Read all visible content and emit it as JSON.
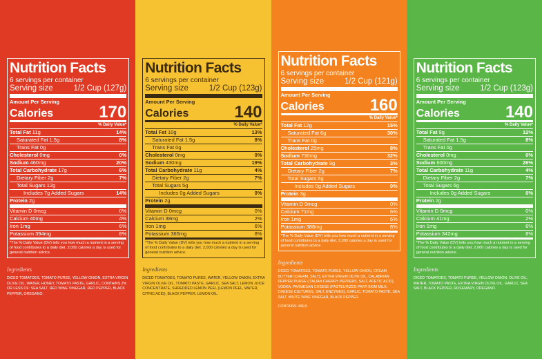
{
  "panels": [
    {
      "title": "Nutrition Facts",
      "servings": "6 servings per container",
      "serving_size_label": "Serving size",
      "serving_size": "1/2 Cup (127g)",
      "amount_per_serving": "Amount Per Serving",
      "calories_label": "Calories",
      "calories": "170",
      "dv_header": "% Daily Value*",
      "nutrients": [
        {
          "name": "Total Fat",
          "amount": "11g",
          "dv": "14%",
          "sub": [
            {
              "name": "Saturated Fat",
              "amount": "1.5g",
              "dv": "8%"
            },
            {
              "name": "Trans Fat",
              "amount": "0g"
            }
          ]
        },
        {
          "name": "Cholesterol",
          "amount": "0mg",
          "dv": "0%"
        },
        {
          "name": "Sodium",
          "amount": "460mg",
          "dv": "20%"
        },
        {
          "name": "Total Carbohydrate",
          "amount": "17g",
          "dv": "6%",
          "sub": [
            {
              "name": "Dietary Fiber",
              "amount": "2g",
              "dv": "7%"
            },
            {
              "name": "Total Sugars",
              "amount": "12g",
              "sub": [
                {
                  "name": "Includes 7g Added Sugars",
                  "dv": "14%"
                }
              ]
            }
          ]
        },
        {
          "name": "Protein",
          "amount": "2g"
        }
      ],
      "vitamins": [
        {
          "name": "Vitamin D",
          "amount": "0mcg",
          "dv": "0%"
        },
        {
          "name": "Calcium",
          "amount": "40mg",
          "dv": "4%"
        },
        {
          "name": "Iron",
          "amount": "1mg",
          "dv": "6%"
        },
        {
          "name": "Potassium",
          "amount": "394mg",
          "dv": "8%"
        }
      ],
      "footnote": "*The % Daily Value (DV) tells you how much a nutrient in a serving of food contributes to a daily diet. 2,000 calories a day is used for general nutrition advice.",
      "ingredients_title": "Ingredients",
      "ingredients": "DICED TOMATOES, TOMATO PUREE, YELLOW ONION, EXTRA VIRGIN OLIVE OIL, WATER, HONEY, TOMATO PASTE, GARLIC, CONTAINS 2% OR LESS OF: SEA SALT, RED WINE VINEGAR, RED PEPPER, BLACK PEPPER, OREGANO."
    },
    {
      "title": "Nutrition Facts",
      "servings": "6 servings per container",
      "serving_size_label": "Serving size",
      "serving_size": "1/2 Cup (123g)",
      "amount_per_serving": "Amount Per Serving",
      "calories_label": "Calories",
      "calories": "140",
      "dv_header": "% Daily Value*",
      "nutrients": [
        {
          "name": "Total Fat",
          "amount": "10g",
          "dv": "13%",
          "sub": [
            {
              "name": "Saturated Fat",
              "amount": "1.5g",
              "dv": "8%"
            },
            {
              "name": "Trans Fat",
              "amount": "0g"
            }
          ]
        },
        {
          "name": "Cholesterol",
          "amount": "0mg",
          "dv": "0%"
        },
        {
          "name": "Sodium",
          "amount": "430mg",
          "dv": "19%"
        },
        {
          "name": "Total Carbohydrate",
          "amount": "11g",
          "dv": "4%",
          "sub": [
            {
              "name": "Dietary Fiber",
              "amount": "2g",
              "dv": "7%"
            },
            {
              "name": "Total Sugars",
              "amount": "5g",
              "sub": [
                {
                  "name": "Includes 0g Added Sugars",
                  "dv": "0%"
                }
              ]
            }
          ]
        },
        {
          "name": "Protein",
          "amount": "2g"
        }
      ],
      "vitamins": [
        {
          "name": "Vitamin D",
          "amount": "0mcg",
          "dv": "0%"
        },
        {
          "name": "Calcium",
          "amount": "38mg",
          "dv": "2%"
        },
        {
          "name": "Iron",
          "amount": "1mg",
          "dv": "6%"
        },
        {
          "name": "Potassium",
          "amount": "365mg",
          "dv": "8%"
        }
      ],
      "footnote": "*The % Daily Value (DV) tells you how much a nutrient in a serving of food contributes to a daily diet. 2,000 calories a day is used for general nutrition advice.",
      "ingredients_title": "Ingredients",
      "ingredients": "DICED TOMATOES, TOMATO PUREE, WATER, YELLOW ONION, EXTRA VIRGIN OLIVE OIL, TOMATO PASTE, GARLIC, SEA SALT, LEMON JUICE CONCENTRATE, SHREDDED LEMON PEEL (LEMON PEEL, WATER, CITRIC ACID), BLACK PEPPER, LEMON OIL."
    },
    {
      "title": "Nutrition Facts",
      "servings": "6 servings per container",
      "serving_size_label": "Serving size",
      "serving_size": "1/2 Cup (121g)",
      "amount_per_serving": "Amount Per Serving",
      "calories_label": "Calories",
      "calories": "160",
      "dv_header": "% Daily Value*",
      "nutrients": [
        {
          "name": "Total Fat",
          "amount": "12g",
          "dv": "15%",
          "sub": [
            {
              "name": "Saturated Fat",
              "amount": "6g",
              "dv": "30%"
            },
            {
              "name": "Trans Fat",
              "amount": "0g"
            }
          ]
        },
        {
          "name": "Cholesterol",
          "amount": "25mg",
          "dv": "8%"
        },
        {
          "name": "Sodium",
          "amount": "730mg",
          "dv": "32%"
        },
        {
          "name": "Total Carbohydrate",
          "amount": "9g",
          "dv": "3%",
          "sub": [
            {
              "name": "Dietary Fiber",
              "amount": "2g",
              "dv": "7%"
            },
            {
              "name": "Total Sugars",
              "amount": "5g",
              "sub": [
                {
                  "name": "Includes 0g Added Sugars",
                  "dv": "0%"
                }
              ]
            }
          ]
        },
        {
          "name": "Protein",
          "amount": "3g"
        }
      ],
      "vitamins": [
        {
          "name": "Vitamin D",
          "amount": "0mcg",
          "dv": "0%"
        },
        {
          "name": "Calcium",
          "amount": "71mg",
          "dv": "6%"
        },
        {
          "name": "Iron",
          "amount": "1mg",
          "dv": "6%"
        },
        {
          "name": "Potassium",
          "amount": "388mg",
          "dv": "8%"
        }
      ],
      "footnote": "*The % Daily Value (DV) tells you how much a nutrient in a serving of food contributes to a daily diet. 2,000 calories a day is used for general nutrition advice.",
      "ingredients_title": "Ingredients",
      "ingredients": "DICED TOMATOES, TOMATO PUREE, YELLOW ONION, CREAM, BUTTER (CREAM, SALT), EXTRA VIRGIN OLIVE OIL, CALABRIAN PEPPER PUREE (ITALIAN CHERRY PEPPERS, SALT, ACETIC ACID), VODKA, PARMESAN CHEESE (PASTEURIZED PART-SKIM MILK, CHEESE CULTURES, SALT, ENZYMES), GARLIC, TOMATO PASTE, SEA SALT, WHITE WINE VINEGAR, BLACK PEPPER.",
      "contains": "CONTAINS: MILK."
    },
    {
      "title": "Nutrition Facts",
      "servings": "6 servings per container",
      "serving_size_label": "Serving size",
      "serving_size": "1/2 Cup (123g)",
      "amount_per_serving": "Amount Per Serving",
      "calories_label": "Calories",
      "calories": "140",
      "dv_header": "% Daily Value*",
      "nutrients": [
        {
          "name": "Total Fat",
          "amount": "9g",
          "dv": "12%",
          "sub": [
            {
              "name": "Saturated Fat",
              "amount": "1.5g",
              "dv": "8%"
            },
            {
              "name": "Trans Fat",
              "amount": "0g"
            }
          ]
        },
        {
          "name": "Cholesterol",
          "amount": "0mg",
          "dv": "0%"
        },
        {
          "name": "Sodium",
          "amount": "600mg",
          "dv": "26%"
        },
        {
          "name": "Total Carbohydrate",
          "amount": "11g",
          "dv": "4%",
          "sub": [
            {
              "name": "Dietary Fiber",
              "amount": "2g",
              "dv": "7%"
            },
            {
              "name": "Total Sugars",
              "amount": "6g",
              "sub": [
                {
                  "name": "Includes 0g Added Sugars",
                  "dv": "0%"
                }
              ]
            }
          ]
        },
        {
          "name": "Protein",
          "amount": "2g"
        }
      ],
      "vitamins": [
        {
          "name": "Vitamin D",
          "amount": "0mcg",
          "dv": "0%"
        },
        {
          "name": "Calcium",
          "amount": "41mg",
          "dv": "2%"
        },
        {
          "name": "Iron",
          "amount": "1mg",
          "dv": "6%"
        },
        {
          "name": "Potassium",
          "amount": "342mg",
          "dv": "8%"
        }
      ],
      "footnote": "*The % Daily Value (DV) tells you how much a nutrient in a serving of food contributes to a daily diet. 2,000 calories a day is used for general nutrition advice.",
      "ingredients_title": "Ingredients",
      "ingredients": "DICED TOMATOES, TOMATO PUREE, YELLOW ONION, OLIVE OIL, WATER, TOMATO PASTE, EXTRA VIRGIN OLIVE OIL, GARLIC, SEA SALT, BLACK PEPPER, ROSEMARY, OREGANO."
    }
  ]
}
